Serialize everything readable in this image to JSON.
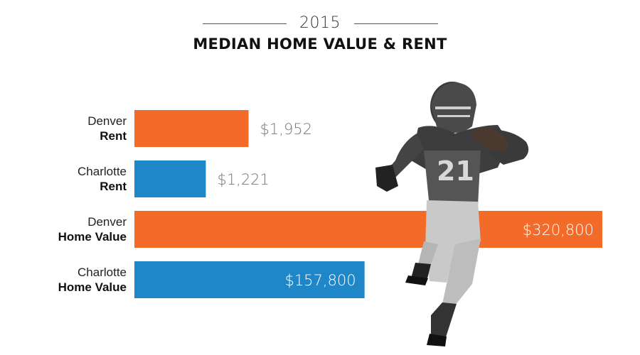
{
  "header": {
    "year": "2015",
    "title": "MEDIAN HOME VALUE & RENT"
  },
  "colors": {
    "denver": "#f26b28",
    "charlotte": "#1f86c8",
    "label_outside": "#777777",
    "label_inside": "#ffffff"
  },
  "chart_data": {
    "type": "bar",
    "orientation": "horizontal",
    "title": "MEDIAN HOME VALUE & RENT",
    "subtitle": "2015",
    "groups": [
      {
        "bars": [
          {
            "city": "Denver",
            "measure": "Rent",
            "value": 1952,
            "value_label": "$1,952",
            "color_key": "denver"
          },
          {
            "city": "Charlotte",
            "measure": "Rent",
            "value": 1221,
            "value_label": "$1,221",
            "color_key": "charlotte"
          }
        ],
        "scale_max": 8000
      },
      {
        "bars": [
          {
            "city": "Denver",
            "measure": "Home Value",
            "value": 320800,
            "value_label": "$320,800",
            "color_key": "denver"
          },
          {
            "city": "Charlotte",
            "measure": "Home Value",
            "value": 157800,
            "value_label": "$157,800",
            "color_key": "charlotte"
          }
        ],
        "scale_max": 320800
      }
    ]
  },
  "decoration": {
    "image": "football-player",
    "jersey_number": "21"
  }
}
